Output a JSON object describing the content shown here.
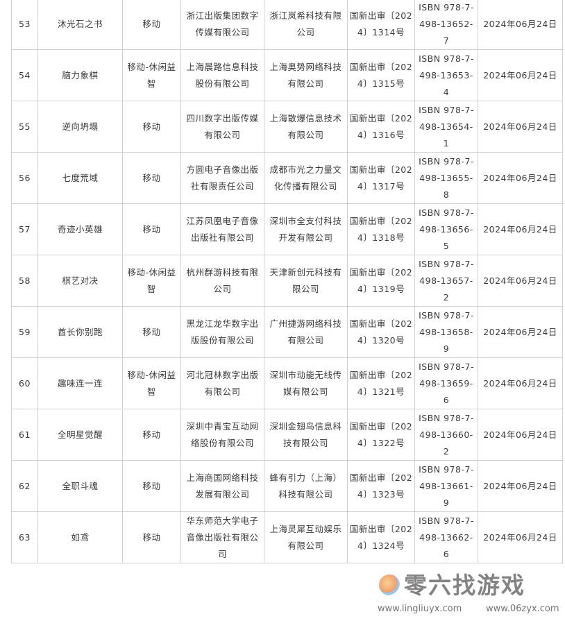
{
  "rows": [
    {
      "no": "53",
      "name": "沐光石之书",
      "type": "移动",
      "publisher": "浙江出版集团数字传媒有限公司",
      "operator": "浙江岚希科技有限公司",
      "approval": "国新出审〔2024〕1314号",
      "isbn": "ISBN 978-7-498-13652-7",
      "date": "2024年06月24日"
    },
    {
      "no": "54",
      "name": "脑力象棋",
      "type": "移动-休闲益智",
      "publisher": "上海晨路信息科技股份有限公司",
      "operator": "上海奥势网络科技有限公司",
      "approval": "国新出审〔2024〕1315号",
      "isbn": "ISBN 978-7-498-13653-4",
      "date": "2024年06月24日"
    },
    {
      "no": "55",
      "name": "逆向坍塌",
      "type": "移动",
      "publisher": "四川数字出版传媒有限公司",
      "operator": "上海散爆信息技术有限公司",
      "approval": "国新出审〔2024〕1316号",
      "isbn": "ISBN 978-7-498-13654-1",
      "date": "2024年06月24日"
    },
    {
      "no": "56",
      "name": "七度荒域",
      "type": "移动",
      "publisher": "方圆电子音像出版社有限责任公司",
      "operator": "成都市光之力量文化传播有限公司",
      "approval": "国新出审〔2024〕1317号",
      "isbn": "ISBN 978-7-498-13655-8",
      "date": "2024年06月24日"
    },
    {
      "no": "57",
      "name": "奇迹小英雄",
      "type": "移动",
      "publisher": "江苏凤凰电子音像出版社有限公司",
      "operator": "深圳市全支付科技开发有限公司",
      "approval": "国新出审〔2024〕1318号",
      "isbn": "ISBN 978-7-498-13656-5",
      "date": "2024年06月24日"
    },
    {
      "no": "58",
      "name": "棋艺对决",
      "type": "移动-休闲益智",
      "publisher": "杭州群游科技有限公司",
      "operator": "天津新创元科技有限公司",
      "approval": "国新出审〔2024〕1319号",
      "isbn": "ISBN 978-7-498-13657-2",
      "date": "2024年06月24日"
    },
    {
      "no": "59",
      "name": "酋长你别跑",
      "type": "移动",
      "publisher": "黑龙江龙华数字出版股份有限公司",
      "operator": "广州捷游网络科技有限公司",
      "approval": "国新出审〔2024〕1320号",
      "isbn": "ISBN 978-7-498-13658-9",
      "date": "2024年06月24日"
    },
    {
      "no": "60",
      "name": "趣味连一连",
      "type": "移动-休闲益智",
      "publisher": "河北冠林数字出版有限公司",
      "operator": "深圳市动能无线传媒有限公司",
      "approval": "国新出审〔2024〕1321号",
      "isbn": "ISBN 978-7-498-13659-6",
      "date": "2024年06月24日"
    },
    {
      "no": "61",
      "name": "全明星觉醒",
      "type": "移动",
      "publisher": "深圳中青宝互动网络股份有限公司",
      "operator": "深圳金翅鸟信息科技有限公司",
      "approval": "国新出审〔2024〕1322号",
      "isbn": "ISBN 978-7-498-13660-2",
      "date": "2024年06月24日"
    },
    {
      "no": "62",
      "name": "全职斗魂",
      "type": "移动",
      "publisher": "上海商国网络科技发展有限公司",
      "operator": "蜂有引力（上海）科技有限公司",
      "approval": "国新出审〔2024〕1323号",
      "isbn": "ISBN 978-7-498-13661-9",
      "date": "2024年06月24日"
    },
    {
      "no": "63",
      "name": "如鸢",
      "type": "移动",
      "publisher": "华东师范大学电子音像出版社有限公司",
      "operator": "上海灵犀互动娱乐有限公司",
      "approval": "国新出审〔2024〕1324号",
      "isbn": "ISBN 978-7-498-13662-6",
      "date": "2024年06月24日"
    }
  ],
  "watermark": {
    "title": "零六找游戏",
    "url1": "www.lingliuyx.com",
    "url2": "www.06zyx.com"
  }
}
